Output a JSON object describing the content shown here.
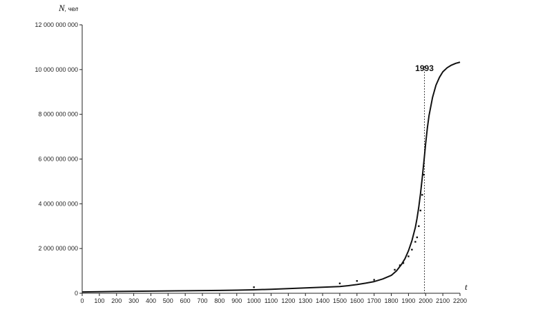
{
  "chart_data": {
    "type": "line",
    "ylabel": "N",
    "ylabel_unit": ", чел",
    "xlabel": "t",
    "xlim": [
      0,
      2200
    ],
    "ylim": [
      0,
      12000000000
    ],
    "x_ticks": [
      0,
      100,
      200,
      300,
      400,
      500,
      600,
      700,
      800,
      900,
      1000,
      1100,
      1200,
      1300,
      1400,
      1500,
      1600,
      1700,
      1800,
      1900,
      2000,
      2100,
      2200
    ],
    "y_ticks": [
      0,
      2000000000,
      4000000000,
      6000000000,
      8000000000,
      10000000000,
      12000000000
    ],
    "x_tick_labels": [
      "0",
      "100",
      "200",
      "300",
      "400",
      "500",
      "600",
      "700",
      "800",
      "900",
      "1000",
      "1100",
      "1200",
      "1300",
      "1400",
      "1500",
      "1600",
      "1700",
      "1800",
      "1900",
      "2000",
      "2100",
      "2200"
    ],
    "y_tick_labels": [
      "0",
      "2 000 000 000",
      "4 000 000 000",
      "6 000 000 000",
      "8 000 000 000",
      "10 000 000 000",
      "12 000 000 000"
    ],
    "grid": false,
    "series": [
      {
        "kind": "line",
        "color": "#111111",
        "x": [
          0,
          200,
          400,
          600,
          800,
          900,
          1000,
          1100,
          1200,
          1300,
          1400,
          1500,
          1550,
          1600,
          1650,
          1700,
          1750,
          1800,
          1830,
          1860,
          1880,
          1900,
          1920,
          1940,
          1950,
          1960,
          1970,
          1980,
          1990,
          2000,
          2010,
          2020,
          2040,
          2060,
          2080,
          2100,
          2125,
          2150,
          2175,
          2200
        ],
        "y": [
          60000000,
          80000000,
          95000000,
          110000000,
          125000000,
          140000000,
          155000000,
          180000000,
          210000000,
          240000000,
          270000000,
          300000000,
          340000000,
          390000000,
          450000000,
          520000000,
          640000000,
          800000000,
          1000000000,
          1300000000,
          1550000000,
          1900000000,
          2350000000,
          2950000000,
          3350000000,
          3850000000,
          4450000000,
          5150000000,
          5900000000,
          6700000000,
          7400000000,
          7950000000,
          8750000000,
          9300000000,
          9650000000,
          9900000000,
          10080000000,
          10200000000,
          10280000000,
          10330000000
        ]
      },
      {
        "kind": "scatter",
        "color": "#111111",
        "x": [
          1000,
          1500,
          1600,
          1700,
          1820,
          1850,
          1870,
          1900,
          1920,
          1940,
          1950,
          1960,
          1970,
          1980,
          1990
        ],
        "y": [
          270000000,
          440000000,
          550000000,
          600000000,
          1050000000,
          1250000000,
          1350000000,
          1650000000,
          1950000000,
          2300000000,
          2500000000,
          3000000000,
          3700000000,
          4400000000,
          5300000000
        ]
      }
    ],
    "annotations": [
      {
        "x": 1993,
        "label": "1993",
        "style": "dotted-vertical-line"
      }
    ]
  }
}
